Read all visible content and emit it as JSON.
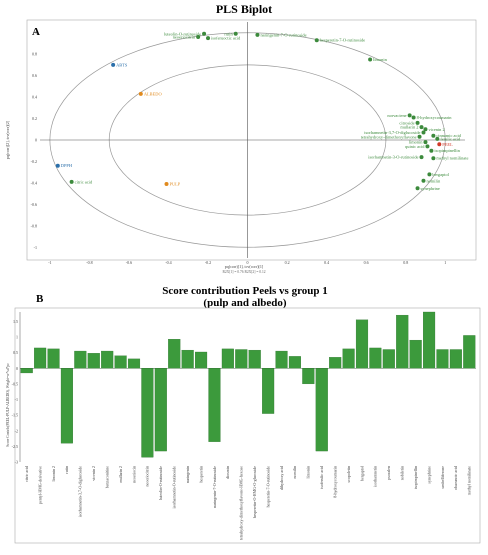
{
  "chart_data": [
    {
      "type": "scatter",
      "panel": "A",
      "title": "PLS Biplot",
      "xlabel": "pq(corr)[1], tcv(corr)[1]",
      "ylabel": "pq(corr)[2], tcv(corr)[2]",
      "subtitle": "R2X[1] = 0.76   R2X[2] = 0.12",
      "xlim": [
        -1.05,
        1.1
      ],
      "ylim": [
        -1.1,
        1.1
      ],
      "xticks": [
        -1,
        -0.8,
        -0.6,
        -0.4,
        -0.2,
        0,
        0.2,
        0.4,
        0.6,
        0.8,
        1
      ],
      "yticks": [
        -1,
        -0.8,
        -0.6,
        -0.4,
        -0.2,
        0,
        0.2,
        0.4,
        0.6,
        0.8,
        1
      ],
      "grid": false,
      "ellipses": [
        1.0,
        0.7
      ],
      "colors": {
        "green": "#3c8a3c",
        "blue": "#2a6faa",
        "orange": "#e08a1e",
        "red": "#d13a2a",
        "ellipse": "#999999",
        "axis": "#555555"
      },
      "points": [
        {
          "label": "luteolin-O-rutinoside",
          "x": -0.22,
          "y": 0.99,
          "group": "green",
          "anchor": "end"
        },
        {
          "label": "neoeriocitrin",
          "x": -0.25,
          "y": 0.96,
          "group": "green",
          "anchor": "end"
        },
        {
          "label": "isoferuoctic acid",
          "x": -0.2,
          "y": 0.95,
          "group": "green",
          "anchor": "start"
        },
        {
          "label": "rutin",
          "x": -0.06,
          "y": 0.99,
          "group": "green",
          "anchor": "end"
        },
        {
          "label": "naringenin-7-O-rutinoside",
          "x": 0.05,
          "y": 0.98,
          "group": "green",
          "anchor": "start"
        },
        {
          "label": "hesperetin-7-O-rutinoside",
          "x": 0.35,
          "y": 0.93,
          "group": "green",
          "anchor": "start"
        },
        {
          "label": "limonin",
          "x": 0.62,
          "y": 0.75,
          "group": "green",
          "anchor": "start"
        },
        {
          "label": "ABTS",
          "x": -0.68,
          "y": 0.7,
          "group": "blue",
          "anchor": "start"
        },
        {
          "label": "ALBEDO",
          "x": -0.54,
          "y": 0.43,
          "group": "orange",
          "anchor": "start"
        },
        {
          "label": "norvaciene",
          "x": 0.82,
          "y": 0.23,
          "group": "green",
          "anchor": "end"
        },
        {
          "label": "8-hydroxycoumarin",
          "x": 0.84,
          "y": 0.21,
          "group": "green",
          "anchor": "start"
        },
        {
          "label": "citroside",
          "x": 0.86,
          "y": 0.16,
          "group": "green",
          "anchor": "end"
        },
        {
          "label": "mullarin 2",
          "x": 0.88,
          "y": 0.12,
          "group": "green",
          "anchor": "end"
        },
        {
          "label": "vicenin 2",
          "x": 0.9,
          "y": 0.1,
          "group": "green",
          "anchor": "start"
        },
        {
          "label": "isorhamnetin-3,7-O-diglucoside",
          "x": 0.89,
          "y": 0.07,
          "group": "green",
          "anchor": "end"
        },
        {
          "label": "cinnamic acid",
          "x": 0.94,
          "y": 0.04,
          "group": "green",
          "anchor": "start"
        },
        {
          "label": "tetrahydroxy-dimethoxyflavone",
          "x": 0.87,
          "y": 0.03,
          "group": "green",
          "anchor": "end"
        },
        {
          "label": "ferulic acid",
          "x": 0.96,
          "y": 0.01,
          "group": "green",
          "anchor": "start"
        },
        {
          "label": "limonin",
          "x": 0.9,
          "y": -0.02,
          "group": "green",
          "anchor": "end"
        },
        {
          "label": "PEEL",
          "x": 0.97,
          "y": -0.04,
          "group": "red",
          "anchor": "start"
        },
        {
          "label": "quinic acid",
          "x": 0.91,
          "y": -0.06,
          "group": "green",
          "anchor": "end"
        },
        {
          "label": "isopimpinellin",
          "x": 0.93,
          "y": -0.1,
          "group": "green",
          "anchor": "start"
        },
        {
          "label": "isorhamnetin-3-O-rutinoside",
          "x": 0.88,
          "y": -0.16,
          "group": "green",
          "anchor": "end"
        },
        {
          "label": "methyl nomilinate",
          "x": 0.94,
          "y": -0.17,
          "group": "green",
          "anchor": "start"
        },
        {
          "label": "bergaptol",
          "x": 0.92,
          "y": -0.32,
          "group": "green",
          "anchor": "start"
        },
        {
          "label": "nomilin",
          "x": 0.89,
          "y": -0.38,
          "group": "green",
          "anchor": "start"
        },
        {
          "label": "synephrine",
          "x": 0.86,
          "y": -0.45,
          "group": "green",
          "anchor": "start"
        },
        {
          "label": "DPPH",
          "x": -0.96,
          "y": -0.24,
          "group": "blue",
          "anchor": "start"
        },
        {
          "label": "citric acid",
          "x": -0.89,
          "y": -0.39,
          "group": "green",
          "anchor": "start"
        },
        {
          "label": "PULP",
          "x": -0.41,
          "y": -0.41,
          "group": "orange",
          "anchor": "start"
        }
      ]
    },
    {
      "type": "bar",
      "panel": "B",
      "title": "Score contribution  Peels vs group 1",
      "subtitle": "(pulp  and albedo)",
      "ylabel": "Score Contrib(PEEL-PULP-ALBEDO), Weight=w*sd*pc",
      "ylim": [
        -3,
        1.8
      ],
      "yticks": [
        -3,
        -2.5,
        -2,
        -1.5,
        -1,
        -0.5,
        0,
        0.5,
        1,
        1.5
      ],
      "grid": false,
      "bar_color": "#3c9a3c",
      "categories": [
        "citric acid",
        "pentyl-HMG-derivative",
        "limonin 2",
        "rutin",
        "isorhamnetin-3,7-O-diglucoside",
        "vicenin 2",
        "benzaconitine",
        "mullarin 2",
        "neoeriocin",
        "neoeriocitrin",
        "luteolin-O-rutinoside",
        "isorhamnetin-O-rutinoside",
        "naringenin",
        "hesperetin",
        "naringenin-7-O-rutinoside",
        "diosmin",
        "tetrahydroxy-dimethoxyflavone-HMG-hexose",
        "hesperetin-O-HMG-O-glucoside",
        "hesperetin-7-O-rutinoside",
        "dihydroxy acid",
        "nomilin",
        "limonin",
        "isoferulic acid",
        "8-hydroxycoumarin",
        "scopoletin",
        "bergaptol",
        "isorhamnetin",
        "psoralen",
        "nobiletin",
        "isopimpinellin",
        "synephrine",
        "umbelliferone",
        "obacunoic acid",
        "methyl nomilinate"
      ],
      "values": [
        -0.15,
        0.65,
        0.62,
        -2.4,
        0.55,
        0.48,
        0.55,
        0.4,
        0.3,
        -2.85,
        -2.65,
        0.93,
        0.58,
        0.52,
        -2.35,
        0.62,
        0.6,
        0.58,
        -1.45,
        0.55,
        0.38,
        -0.5,
        -2.65,
        0.35,
        0.62,
        1.55,
        0.65,
        0.6,
        1.7,
        0.9,
        1.8,
        0.6,
        0.6,
        1.05
      ]
    }
  ]
}
